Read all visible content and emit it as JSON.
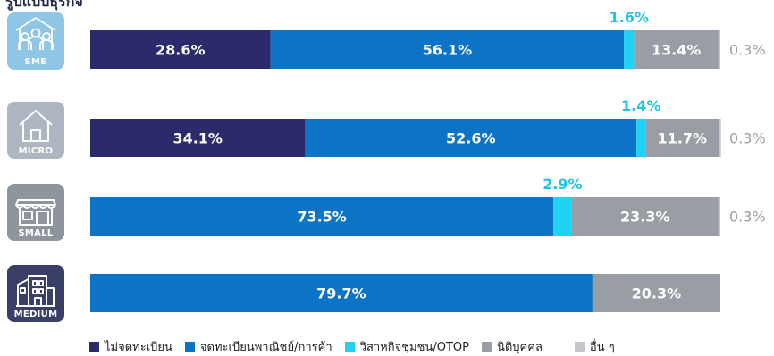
{
  "page": {
    "title": "รูปแบบธุรกิจ"
  },
  "icons": [
    {
      "label": "SME",
      "color": "#8fc6e6"
    },
    {
      "label": "MICRO",
      "color": "#aeb7c1"
    },
    {
      "label": "SMALL",
      "color": "#8e959d"
    },
    {
      "label": "MEDIUM",
      "color": "#3a3f68"
    }
  ],
  "chart_data": {
    "type": "bar",
    "orientation": "horizontal",
    "stacked": true,
    "categories": [
      "SME",
      "MICRO",
      "SMALL",
      "MEDIUM"
    ],
    "series": [
      {
        "name": "ไม่จดทะเบียน",
        "color": "#2b2a6b",
        "values": [
          28.6,
          34.1,
          0,
          0
        ],
        "labels": [
          "28.6%",
          "34.1%",
          "",
          ""
        ],
        "label_color": "#ffffff"
      },
      {
        "name": "จดทะเบียนพาณิชย์/การค้า",
        "color": "#0b74c6",
        "values": [
          56.1,
          52.6,
          73.5,
          79.7
        ],
        "labels": [
          "56.1%",
          "52.6%",
          "73.5%",
          "79.7%"
        ],
        "label_color": "#ffffff"
      },
      {
        "name": "วิสาหกิจชุมชน/OTOP",
        "color": "#1fd1f2",
        "values": [
          1.6,
          1.4,
          2.9,
          0
        ],
        "labels": [
          "1.6%",
          "1.4%",
          "2.9%",
          ""
        ],
        "label_color": "#21c4e6"
      },
      {
        "name": "นิติบุคคล",
        "color": "#9a9ea4",
        "values": [
          13.4,
          11.7,
          23.3,
          20.3
        ],
        "labels": [
          "13.4%",
          "11.7%",
          "23.3%",
          "20.3%"
        ],
        "label_color": "#ffffff"
      },
      {
        "name": "อื่น ๆ",
        "color": "#c4c6ca",
        "values": [
          0.3,
          0.3,
          0.3,
          0
        ],
        "labels": [
          "0.3%",
          "0.3%",
          "0.3%",
          ""
        ],
        "label_color": "#9a9ea4"
      }
    ],
    "xlim": [
      0,
      100
    ],
    "legend_position": "bottom",
    "grid": false
  }
}
